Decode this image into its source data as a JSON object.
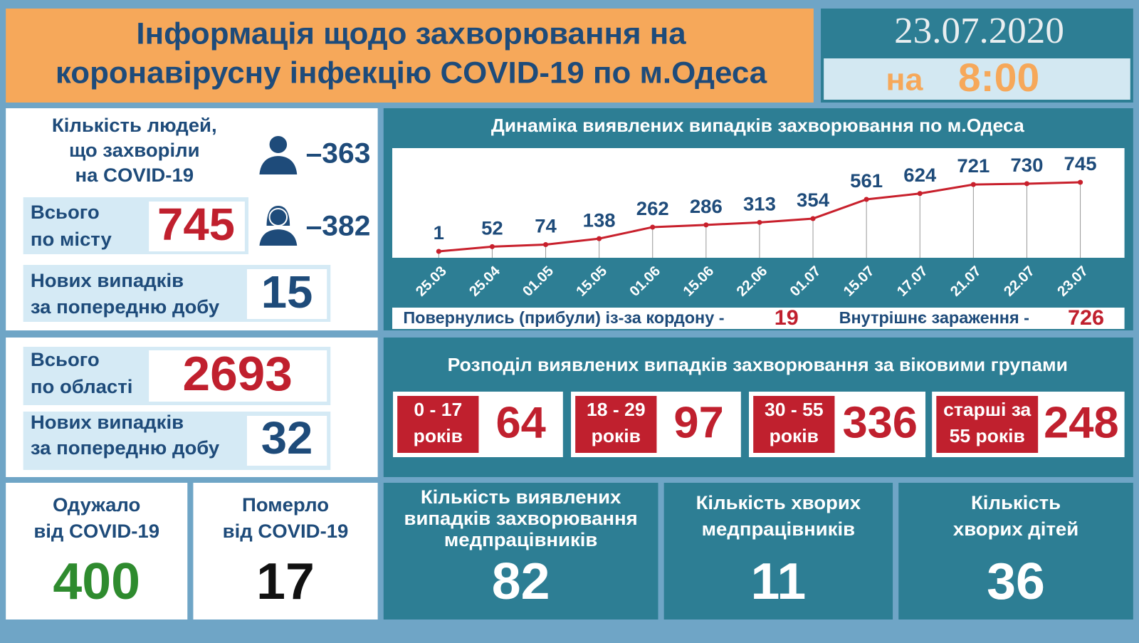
{
  "header": {
    "title_lines": [
      "Інформація щодо захворювання на",
      "коронавірусну інфекцію COVID-19 по м.Одеса"
    ],
    "date": "23.07.2020",
    "time_prefix": "на",
    "time": "8:00"
  },
  "city": {
    "sick_label_lines": [
      "Кількість людей,",
      "що захворіли",
      "на COVID-19"
    ],
    "men": "–363",
    "women": "–382",
    "total_label_lines": [
      "Всього",
      "по місту"
    ],
    "total": "745",
    "new_label_lines": [
      "Нових випадків",
      "за попередню добу"
    ],
    "new": "15"
  },
  "region": {
    "total_label_lines": [
      "Всього",
      "по області"
    ],
    "total": "2693",
    "new_label_lines": [
      "Нових випадків",
      "за попередню добу"
    ],
    "new": "32"
  },
  "recovered": {
    "label_lines": [
      "Одужало",
      "від COVID-19"
    ],
    "value": "400"
  },
  "died": {
    "label_lines": [
      "Померло",
      "від COVID-19"
    ],
    "value": "17"
  },
  "chart_data": {
    "type": "line",
    "title": "Динаміка виявлених випадків захворювання по м.Одеса",
    "categories": [
      "25.03",
      "25.04",
      "01.05",
      "15.05",
      "01.06",
      "15.06",
      "22.06",
      "01.07",
      "15.07",
      "17.07",
      "21.07",
      "22.07",
      "23.07"
    ],
    "values": [
      1,
      52,
      74,
      138,
      262,
      286,
      313,
      354,
      561,
      624,
      721,
      730,
      745
    ],
    "color": "#c8202c"
  },
  "sources": {
    "returned_label": "Повернулись (прибули) із-за кордону -",
    "returned": "19",
    "internal_label": "Внутрішнє зараження  -",
    "internal": "726"
  },
  "age_groups": {
    "title": "Розподіл виявлених випадків захворювання за віковими групами",
    "groups": [
      {
        "label_lines": [
          "0 - 17",
          "років"
        ],
        "value": "64"
      },
      {
        "label_lines": [
          "18 - 29",
          "років"
        ],
        "value": "97"
      },
      {
        "label_lines": [
          "30 - 55",
          "років"
        ],
        "value": "336"
      },
      {
        "label_lines": [
          "старші за",
          "55 років"
        ],
        "value": "248"
      }
    ]
  },
  "medical": [
    {
      "label_lines": [
        "Кількість виявлених",
        "випадків захворювання",
        "медпрацівників"
      ],
      "value": "82"
    },
    {
      "label_lines": [
        "Кількість хворих",
        "медпрацівників"
      ],
      "value": "11"
    },
    {
      "label_lines": [
        "Кількість",
        "хворих дітей"
      ],
      "value": "36"
    }
  ]
}
